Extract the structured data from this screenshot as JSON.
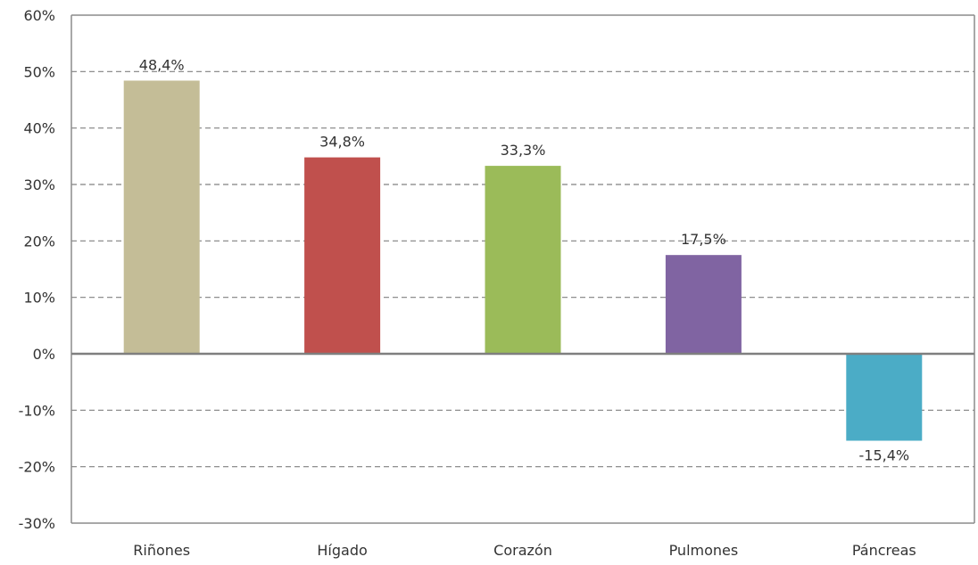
{
  "chart_data": {
    "type": "bar",
    "title": "",
    "xlabel": "",
    "ylabel": "",
    "categories": [
      "Riñones",
      "Hígado",
      "Corazón",
      "Pulmones",
      "Páncreas"
    ],
    "values": [
      48.4,
      34.8,
      33.3,
      17.5,
      -15.4
    ],
    "data_labels": [
      "48,4%",
      "34,8%",
      "33,3%",
      "17,5%",
      "-15,4%"
    ],
    "colors": [
      "#c4bd97",
      "#c0504d",
      "#9bbb59",
      "#8064a2",
      "#4bacc6"
    ],
    "ylim": [
      -30,
      60
    ],
    "yticks": [
      60,
      50,
      40,
      30,
      20,
      10,
      0,
      -10,
      -20,
      -30
    ],
    "ytick_labels": [
      "60%",
      "50%",
      "40%",
      "30%",
      "20%",
      "10%",
      "0%",
      "-10%",
      "-20%",
      "-30%"
    ],
    "grid": "horizontal-dashed",
    "legend": "none"
  }
}
